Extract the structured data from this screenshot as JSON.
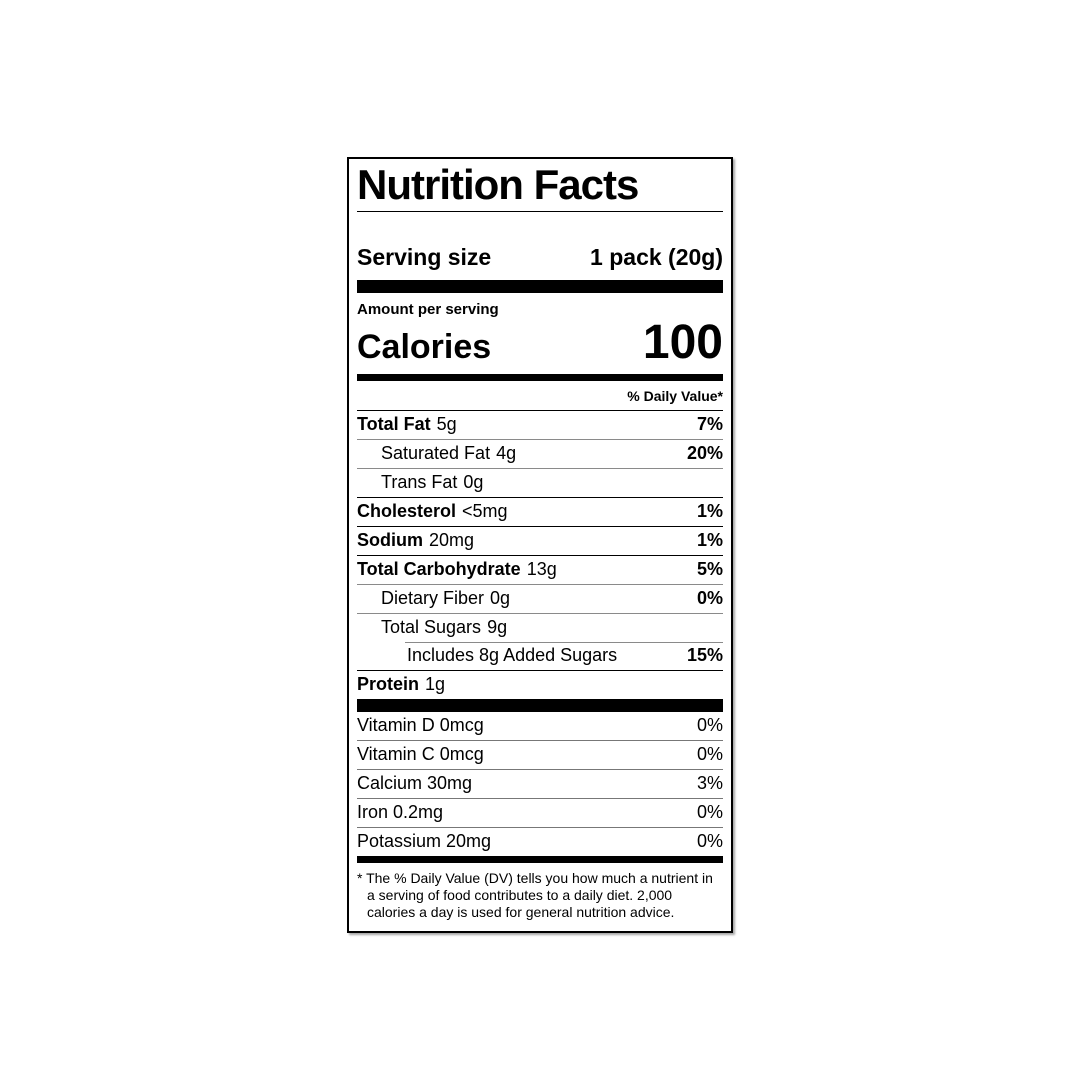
{
  "label": {
    "title": "Nutrition Facts",
    "serving": {
      "label": "Serving size",
      "value": "1 pack (20g)"
    },
    "calories": {
      "section_label": "Amount per serving",
      "label": "Calories",
      "value": "100"
    },
    "daily_value_header": "% Daily Value*",
    "nutrients": [
      {
        "name": "Total Fat",
        "amount": "5g",
        "dv": "7%",
        "bold": true,
        "indent": 0
      },
      {
        "name": "Saturated Fat",
        "amount": "4g",
        "dv": "20%",
        "bold": false,
        "indent": 1
      },
      {
        "name": "Trans Fat",
        "amount": "0g",
        "dv": "",
        "bold": false,
        "indent": 1
      },
      {
        "name": "Cholesterol",
        "amount": "<5mg",
        "dv": "1%",
        "bold": true,
        "indent": 0
      },
      {
        "name": "Sodium",
        "amount": "20mg",
        "dv": "1%",
        "bold": true,
        "indent": 0
      },
      {
        "name": "Total Carbohydrate",
        "amount": "13g",
        "dv": "5%",
        "bold": true,
        "indent": 0
      },
      {
        "name": "Dietary Fiber",
        "amount": "0g",
        "dv": "0%",
        "bold": false,
        "indent": 1
      },
      {
        "name": "Total Sugars",
        "amount": "9g",
        "dv": "",
        "bold": false,
        "indent": 1
      },
      {
        "name": "Includes 8g Added Sugars",
        "amount": "",
        "dv": "15%",
        "bold": false,
        "indent": 2,
        "indent_rule": true
      },
      {
        "name": "Protein",
        "amount": "1g",
        "dv": "",
        "bold": true,
        "indent": 0
      }
    ],
    "vitamins": [
      {
        "name": "Vitamin D 0mcg",
        "dv": "0%"
      },
      {
        "name": "Vitamin C 0mcg",
        "dv": "0%"
      },
      {
        "name": "Calcium 30mg",
        "dv": "3%"
      },
      {
        "name": "Iron 0.2mg",
        "dv": "0%"
      },
      {
        "name": "Potassium 20mg",
        "dv": "0%"
      }
    ],
    "footnote": {
      "symbol": "*",
      "text": "The % Daily Value (DV) tells you how much a nutrient in a serving of food contributes to a daily diet. 2,000 calories a day is used for general nutrition advice."
    },
    "colors": {
      "ink": "#000000",
      "background": "#ffffff",
      "hairline_sub": "#8a8a8a"
    }
  }
}
